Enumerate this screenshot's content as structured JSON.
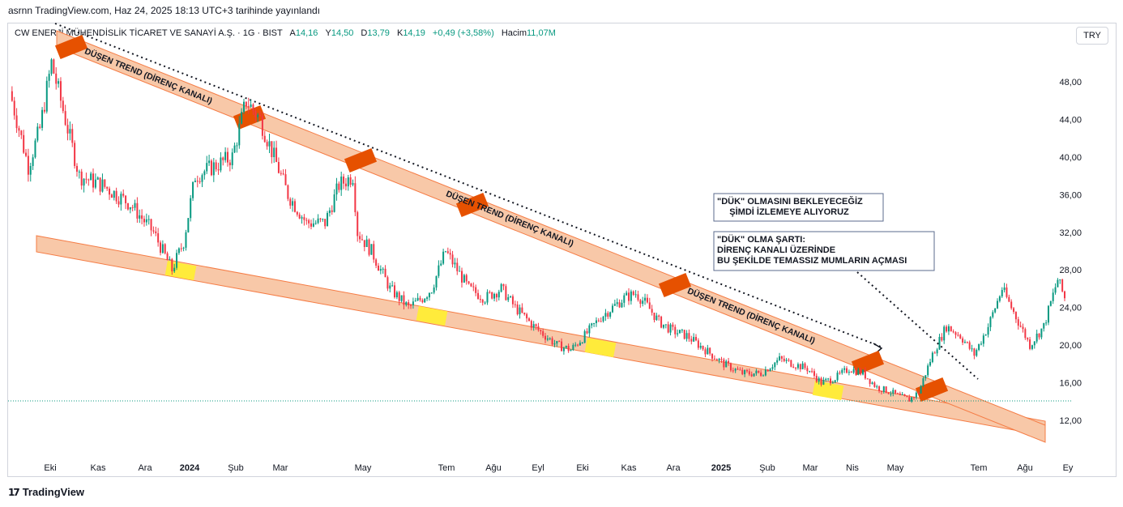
{
  "published": "asrnn TradingView.com, Haz 24, 2025 18:13 UTC+3 tarihinde yayınlandı",
  "legend": {
    "symbol": "CW ENERJİ MÜHENDİSLİK TİCARET VE SANAYİ A.Ş. · 1G · BIST",
    "open_label": "A",
    "open": "14,16",
    "high_label": "Y",
    "high": "14,50",
    "low_label": "D",
    "low": "13,79",
    "close_label": "K",
    "close": "14,19",
    "change": "+0,49 (+3,58%)",
    "volume_label": "Hacim",
    "volume": "11,07M"
  },
  "currency": "TRY",
  "footer": "TradingView",
  "logo_icon": "tradingview-logo-icon",
  "colors": {
    "up": "#089981",
    "down": "#f23645",
    "channel_fill": "#f8c8a8",
    "channel_line": "#f57c45",
    "touch_dark": "#e65100",
    "touch_yellow": "#ffeb3b"
  },
  "chart_data": {
    "type": "candlestick",
    "x_ticks": [
      "Eki",
      "Kas",
      "Ara",
      "2024",
      "Şub",
      "Mar",
      "May",
      "Tem",
      "Ağu",
      "Eyl",
      "Eki",
      "Kas",
      "Ara",
      "2025",
      "Şub",
      "Mar",
      "Nis",
      "May",
      "Tem",
      "Ağu",
      "Ey"
    ],
    "y_ticks": [
      "48,00",
      "44,00",
      "40,00",
      "36,00",
      "32,00",
      "28,00",
      "24,00",
      "20,00",
      "16,00",
      "12,00"
    ],
    "ylim": [
      9.5,
      54
    ],
    "last_price": 14.19,
    "price_path": [
      [
        0,
        47
      ],
      [
        8,
        39
      ],
      [
        13,
        43
      ],
      [
        18,
        50
      ],
      [
        24,
        44
      ],
      [
        30,
        38
      ],
      [
        40,
        37
      ],
      [
        52,
        35
      ],
      [
        62,
        32
      ],
      [
        70,
        28
      ],
      [
        75,
        31
      ],
      [
        80,
        38
      ],
      [
        88,
        39
      ],
      [
        96,
        40
      ],
      [
        102,
        46
      ],
      [
        108,
        44
      ],
      [
        114,
        40
      ],
      [
        120,
        36
      ],
      [
        128,
        33
      ],
      [
        136,
        33
      ],
      [
        142,
        37
      ],
      [
        148,
        38
      ],
      [
        150,
        32
      ],
      [
        156,
        30
      ],
      [
        164,
        26
      ],
      [
        172,
        24
      ],
      [
        178,
        25
      ],
      [
        182,
        26
      ],
      [
        188,
        30
      ],
      [
        193,
        28
      ],
      [
        198,
        26
      ],
      [
        205,
        25
      ],
      [
        212,
        26
      ],
      [
        218,
        24
      ],
      [
        226,
        22
      ],
      [
        236,
        20
      ],
      [
        242,
        19.5
      ],
      [
        248,
        21
      ],
      [
        255,
        23
      ],
      [
        260,
        24
      ],
      [
        265,
        25
      ],
      [
        270,
        25.5
      ],
      [
        274,
        24.5
      ],
      [
        280,
        22.5
      ],
      [
        286,
        21.5
      ],
      [
        292,
        21
      ],
      [
        300,
        19.5
      ],
      [
        308,
        18
      ],
      [
        316,
        17
      ],
      [
        324,
        17
      ],
      [
        332,
        18.5
      ],
      [
        338,
        18
      ],
      [
        344,
        17.5
      ],
      [
        350,
        16
      ],
      [
        356,
        16.5
      ],
      [
        362,
        17.5
      ],
      [
        368,
        17
      ],
      [
        374,
        15.5
      ],
      [
        380,
        15
      ],
      [
        384,
        14.5
      ],
      [
        388,
        14.2
      ],
      [
        392,
        15
      ],
      [
        398,
        19
      ],
      [
        404,
        22
      ],
      [
        410,
        21
      ],
      [
        416,
        19
      ],
      [
        422,
        22
      ],
      [
        428,
        26
      ],
      [
        434,
        23
      ],
      [
        440,
        20
      ],
      [
        446,
        22
      ],
      [
        452,
        27
      ],
      [
        455,
        25
      ]
    ],
    "annotations": [
      "DÜŞEN TREND (DİRENÇ KANALI)",
      "DÜŞEN TREND (DİRENÇ KANALI)",
      "DÜŞEN TREND (DİRENÇ KANALI)"
    ],
    "notes": [
      "\"DÜK\" OLMASINI BEKLEYECEĞİZ\n     ŞİMDİ İZLEMEYE ALIYORUZ",
      "\"DÜK\" OLMA ŞARTI:\nDİRENÇ KANALI ÜZERİNDE\nBU ŞEKİLDE TEMASSIZ MUMLARIN AÇMASI"
    ]
  }
}
